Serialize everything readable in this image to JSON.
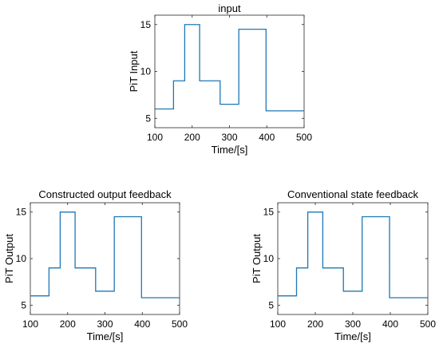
{
  "colors": {
    "line": "#1f77b4",
    "axis": "#262626"
  },
  "chart_data": [
    {
      "type": "line",
      "title": "input",
      "xlabel": "Time/[s]",
      "ylabel": "PiT Input",
      "xlim": [
        100,
        500
      ],
      "ylim": [
        4,
        16
      ],
      "xticks": [
        100,
        200,
        300,
        400,
        500
      ],
      "yticks": [
        5,
        10,
        15
      ],
      "grid": false,
      "series": [
        {
          "x": [
            100,
            150,
            150,
            180,
            180,
            220,
            220,
            275,
            275,
            325,
            325,
            398,
            398,
            500
          ],
          "y": [
            6,
            6,
            9,
            9,
            15,
            15,
            9,
            9,
            6.5,
            6.5,
            14.5,
            14.5,
            5.8,
            5.8
          ]
        }
      ]
    },
    {
      "type": "line",
      "title": "Constructed output feedback",
      "xlabel": "Time/[s]",
      "ylabel": "PiT Output",
      "xlim": [
        100,
        500
      ],
      "ylim": [
        4,
        16
      ],
      "xticks": [
        100,
        200,
        300,
        400,
        500
      ],
      "yticks": [
        5,
        10,
        15
      ],
      "grid": false,
      "series": [
        {
          "x": [
            100,
            150,
            150,
            180,
            180,
            220,
            220,
            275,
            275,
            325,
            325,
            398,
            398,
            500
          ],
          "y": [
            6,
            6,
            9,
            9,
            15,
            15,
            9,
            9,
            6.5,
            6.5,
            14.5,
            14.5,
            5.8,
            5.8
          ]
        }
      ]
    },
    {
      "type": "line",
      "title": "Conventional state feedback",
      "xlabel": "Time/[s]",
      "ylabel": "PiT Output",
      "xlim": [
        100,
        500
      ],
      "ylim": [
        4,
        16
      ],
      "xticks": [
        100,
        200,
        300,
        400,
        500
      ],
      "yticks": [
        5,
        10,
        15
      ],
      "grid": false,
      "series": [
        {
          "x": [
            100,
            150,
            150,
            180,
            180,
            220,
            220,
            275,
            275,
            325,
            325,
            398,
            398,
            500
          ],
          "y": [
            6,
            6,
            9,
            9,
            15,
            15,
            9,
            9,
            6.5,
            6.5,
            14.5,
            14.5,
            5.8,
            5.8
          ]
        }
      ]
    }
  ]
}
